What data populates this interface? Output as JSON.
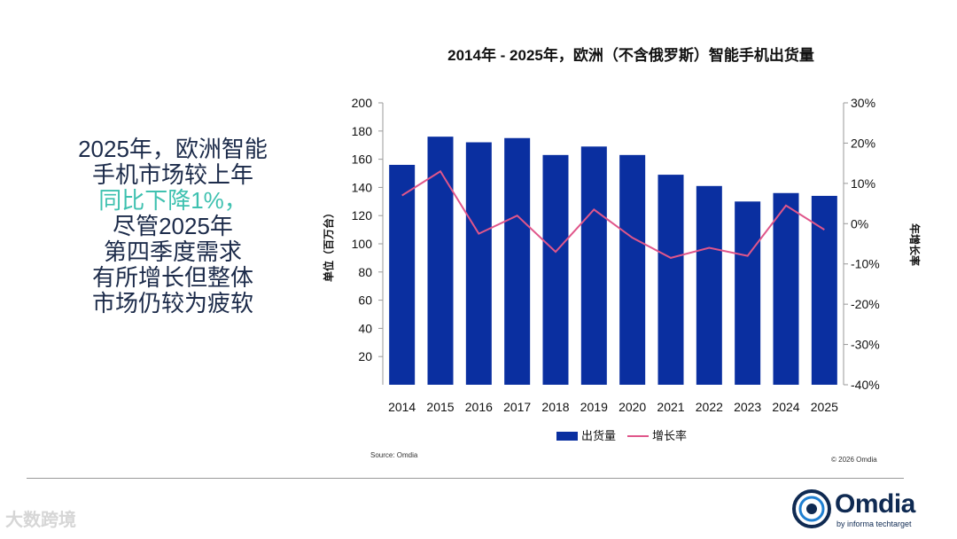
{
  "headline": {
    "line1": "2025年，欧洲智能",
    "line2": "手机市场较上年",
    "line3": "同比下降1%，",
    "line4": "尽管2025年",
    "line5": "第四季度需求",
    "line6": "有所增长但整体",
    "line7": "市场仍较为疲软"
  },
  "chart_data": {
    "type": "bar",
    "title": "2014年 - 2025年，欧洲（不含俄罗斯）智能手机出货量",
    "categories": [
      "2014",
      "2015",
      "2016",
      "2017",
      "2018",
      "2019",
      "2020",
      "2021",
      "2022",
      "2023",
      "2024",
      "2025"
    ],
    "series": [
      {
        "name": "出货量",
        "type": "bar",
        "axis": "left",
        "values": [
          156,
          176,
          172,
          175,
          163,
          169,
          163,
          149,
          141,
          130,
          136,
          134
        ]
      },
      {
        "name": "增长率",
        "type": "line",
        "axis": "right",
        "values": [
          7,
          13,
          -2.5,
          2,
          -7,
          3.5,
          -3.5,
          -8.5,
          -6,
          -8,
          4.5,
          -1.5
        ]
      }
    ],
    "ylabel": "单位（百万台）",
    "y2label": "年增长率",
    "ylim": [
      0,
      200
    ],
    "y2lim": [
      -40,
      30
    ],
    "yticks": [
      "20",
      "40",
      "60",
      "80",
      "100",
      "120",
      "140",
      "160",
      "180",
      "200"
    ],
    "y2ticks": [
      "30%",
      "20%",
      "10%",
      "0%",
      "-10%",
      "-20%",
      "-30%",
      "-40%"
    ],
    "colors": {
      "bar": "#0a2fa0",
      "line": "#e0568a"
    }
  },
  "footer": {
    "source": "Source: Omdia",
    "copyright": "© 2026 Omdia"
  },
  "logo": {
    "word": "Omdia",
    "sub": "by informa techtarget"
  },
  "watermark": "大数跨境"
}
